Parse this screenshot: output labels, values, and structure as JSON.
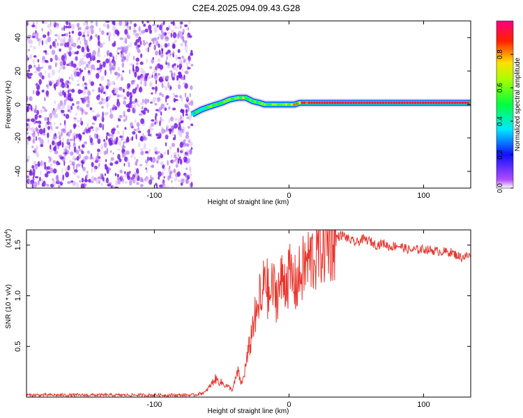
{
  "chart_data": [
    {
      "type": "heatmap",
      "title": "C2E4.2025.094.09.43.G28",
      "xlabel": "Height of straight line (km)",
      "ylabel": "Frequency (Hz)",
      "xlim": [
        -195,
        135
      ],
      "ylim": [
        -50,
        50
      ],
      "xticks": [
        -100,
        0,
        100
      ],
      "yticks": [
        -40,
        -20,
        0,
        20,
        40
      ],
      "noise_region": {
        "x": [
          -195,
          -72
        ],
        "y": [
          -50,
          50
        ],
        "amplitude_range": [
          0.05,
          0.3
        ]
      },
      "signal_track": {
        "x": [
          -72,
          -65,
          -58,
          -50,
          -44,
          -38,
          -32,
          -27,
          -22,
          -18,
          -14,
          -10,
          -6,
          0,
          4,
          8,
          15,
          40,
          80,
          135
        ],
        "y": [
          -6,
          -3,
          -1,
          1,
          3,
          4,
          4,
          2,
          1,
          0,
          0,
          0,
          0,
          0,
          0,
          1,
          1,
          1,
          1,
          1
        ],
        "amplitude": [
          0.35,
          0.45,
          0.5,
          0.55,
          0.6,
          0.65,
          0.6,
          0.55,
          0.55,
          0.6,
          0.6,
          0.6,
          0.65,
          0.7,
          0.7,
          0.8,
          0.9,
          0.95,
          0.95,
          0.95
        ]
      },
      "colorbar": {
        "label": "Normalized spectral amplitude",
        "range": [
          0,
          1
        ],
        "ticks": [
          0.0,
          0.2,
          0.4,
          0.6,
          0.8
        ],
        "tick_labels": [
          "0.0",
          "0.2",
          "0.4",
          "0.6",
          "0.8"
        ]
      }
    },
    {
      "type": "line",
      "xlabel": "Height of straight line (km)",
      "ylabel": "SNR (10 * v/v)",
      "y_exponent_label": "(x10",
      "y_exponent_sup": "4",
      "y_exponent_close": ")",
      "xlim": [
        -195,
        135
      ],
      "ylim": [
        0,
        1.65
      ],
      "xticks": [
        -100,
        0,
        100
      ],
      "yticks": [
        0.5,
        1.0,
        1.5
      ],
      "ytick_labels": [
        "0.5",
        "1.0",
        "1.5"
      ],
      "color": "#e8362d",
      "series": [
        {
          "x": [
            -195,
            -150,
            -100,
            -70,
            -62,
            -58,
            -55,
            -50,
            -45,
            -42,
            -38,
            -35,
            -30,
            -28,
            -26,
            -24,
            -22,
            -20,
            -18,
            -15,
            -12,
            -10,
            -5,
            0,
            5,
            10,
            15,
            20,
            25,
            30,
            35,
            40,
            45,
            50,
            55,
            60,
            65,
            70,
            75,
            80,
            90,
            100,
            110,
            120,
            128,
            135
          ],
          "y": [
            0.02,
            0.02,
            0.02,
            0.02,
            0.05,
            0.12,
            0.18,
            0.14,
            0.1,
            0.07,
            0.25,
            0.12,
            0.45,
            0.6,
            0.8,
            0.75,
            1.0,
            0.85,
            1.3,
            0.95,
            1.1,
            1.0,
            1.15,
            1.2,
            1.1,
            1.25,
            1.35,
            1.4,
            1.5,
            1.52,
            1.58,
            1.6,
            1.55,
            1.52,
            1.56,
            1.54,
            1.5,
            1.52,
            1.48,
            1.5,
            1.45,
            1.46,
            1.44,
            1.43,
            1.38,
            1.4
          ]
        }
      ]
    }
  ]
}
